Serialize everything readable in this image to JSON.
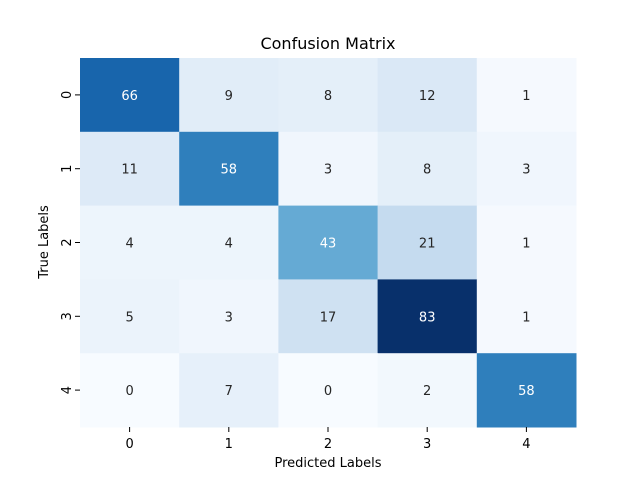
{
  "chart_data": {
    "type": "heatmap",
    "title": "Confusion Matrix",
    "xlabel": "Predicted Labels",
    "ylabel": "True Labels",
    "x_categories": [
      "0",
      "1",
      "2",
      "3",
      "4"
    ],
    "y_categories": [
      "0",
      "1",
      "2",
      "3",
      "4"
    ],
    "values": [
      [
        66,
        9,
        8,
        12,
        1
      ],
      [
        11,
        58,
        3,
        8,
        3
      ],
      [
        4,
        4,
        43,
        21,
        1
      ],
      [
        5,
        3,
        17,
        83,
        1
      ],
      [
        0,
        7,
        0,
        2,
        58
      ]
    ],
    "colormap": "Blues",
    "value_range": [
      0,
      83
    ],
    "annotate_cells": true,
    "colorbar": false,
    "grid": false,
    "colors": {
      "low": "#f7fbff",
      "high": "#08306b",
      "dark_text": "#262626",
      "light_text": "#ffffff"
    }
  }
}
